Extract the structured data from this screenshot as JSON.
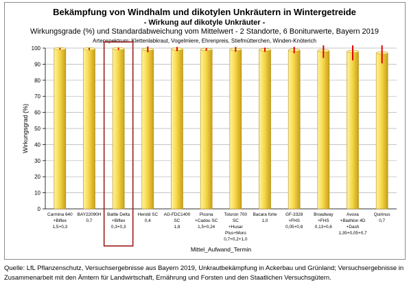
{
  "chart_data": {
    "type": "bar",
    "title": "Bekämpfung von Windhalm und dikotylen Unkräutern in Wintergetreide",
    "subtitle": "- Wirkung auf dikotyle Unkräuter -",
    "subtitle2": "Wirkungsgrade (%) und Standardabweichung vom Mittelwert - 2 Standorte, 6 Boniturwerte, Bayern 2019",
    "note": "Artenspektrum: Klettenlabkraut, Vogelmiere, Ehrenpreis, Stiefmütterchen, Winden-Knöterich",
    "xlabel": "Mittel_Aufwand_Termin",
    "ylabel": "Wirkungsgrad (%)",
    "ylim": [
      0,
      100
    ],
    "yticks": [
      0,
      10,
      20,
      30,
      40,
      50,
      60,
      70,
      80,
      90,
      100
    ],
    "categories": [
      [
        "Carmina 640",
        "+Biflex",
        "1,5+0,3"
      ],
      [
        "BAY22090H",
        "0,7"
      ],
      [
        "Battle Delta",
        "+Biflex",
        "0,3+0,3"
      ],
      [
        "Herold SC",
        "0,4"
      ],
      [
        "AG-FDC1400",
        "SC",
        "1,8"
      ],
      [
        "Picona",
        "+Cadou SC",
        "1,5+0,24"
      ],
      [
        "Toluron 700",
        "SC",
        "+Husar",
        "Plus+Moro",
        "0,7+0,2+1,0"
      ],
      [
        "Bacara forte",
        "1,0"
      ],
      [
        "GF-3328",
        "+FHS",
        "0,05+0,8"
      ],
      [
        "Broadway",
        "+FHS",
        "0,13+0,6"
      ],
      [
        "Avoxa",
        "+Biathlon 4D",
        "+Dash",
        "1,35+0,05+0,7"
      ],
      [
        "Quirinus",
        "0,7"
      ]
    ],
    "values": [
      99.6,
      99.5,
      99.6,
      99.2,
      99.4,
      99.2,
      99.2,
      99.0,
      98.8,
      98.4,
      97.9,
      97.0
    ],
    "errors": [
      0.5,
      0.6,
      0.6,
      1.8,
      1.3,
      0.8,
      1.5,
      1.3,
      2.0,
      4.5,
      5.5,
      6.5
    ],
    "highlighted_index": 2,
    "colors": {
      "bar_light": "#fff3a0",
      "bar_mid": "#f7d94c",
      "bar_dark": "#c9a017",
      "error_bar": "#e00000",
      "highlight_box": "#9b1b1b",
      "grid": "#b0b0b0"
    }
  },
  "source": "Quelle: LfL Pflanzenschutz, Versuchsergebnisse aus Bayern 2019, Unkrautbekämpfung in Ackerbau und Grünland; Versuchsergebnisse in Zusammenarbeit mit den Ämtern für Landwirtschaft, Ernährung und Forsten und den Staatlichen Versuchsgütern."
}
